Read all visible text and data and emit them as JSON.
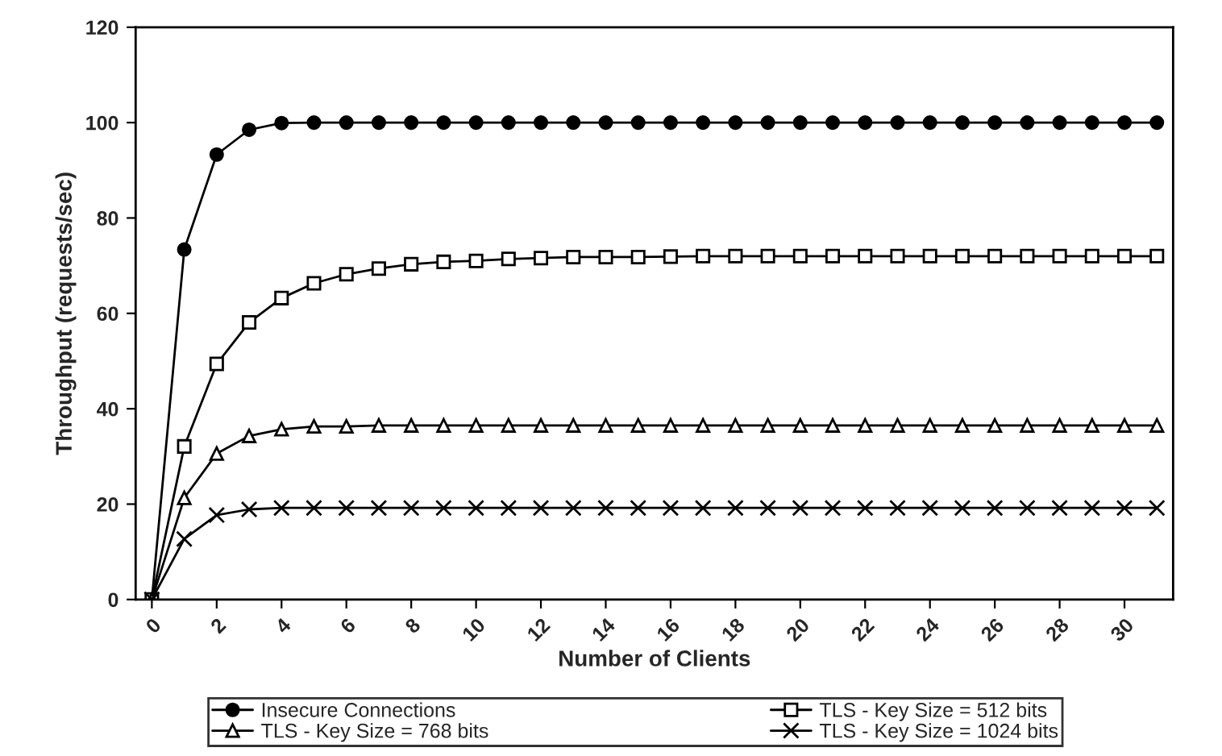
{
  "chart_data": {
    "type": "line",
    "xlabel": "Number of Clients",
    "ylabel": "Throughput (requests/sec)",
    "x": [
      0,
      1,
      2,
      3,
      4,
      5,
      6,
      7,
      8,
      9,
      10,
      11,
      12,
      13,
      14,
      15,
      16,
      17,
      18,
      19,
      20,
      21,
      22,
      23,
      24,
      25,
      26,
      27,
      28,
      29,
      30,
      31
    ],
    "xlim": [
      -0.5,
      31.5
    ],
    "xticks": [
      0,
      2,
      4,
      6,
      8,
      10,
      12,
      14,
      16,
      18,
      20,
      22,
      24,
      26,
      28,
      30
    ],
    "ylim": [
      0,
      120
    ],
    "yticks": [
      0,
      20,
      40,
      60,
      80,
      100,
      120
    ],
    "grid": false,
    "legend": "bottom",
    "series": [
      {
        "name": "Insecure Connections",
        "color": "#000000",
        "marker": "circle",
        "values": [
          0,
          73.4,
          93.3,
          98.5,
          99.9,
          100,
          100,
          100,
          100,
          100,
          100,
          100,
          100,
          100,
          100,
          100,
          100,
          100,
          100,
          100,
          100,
          100,
          100,
          100,
          100,
          100,
          100,
          100,
          100,
          100,
          100,
          100
        ]
      },
      {
        "name": "TLS - Key Size = 512 bits",
        "color": "#000000",
        "marker": "square",
        "values": [
          0,
          32.1,
          49.4,
          58.1,
          63.2,
          66.3,
          68.2,
          69.4,
          70.3,
          70.8,
          71,
          71.4,
          71.6,
          71.8,
          71.8,
          71.8,
          71.9,
          72,
          72,
          72,
          72,
          72,
          72,
          72,
          72,
          72,
          72,
          72,
          72,
          72,
          72,
          72
        ]
      },
      {
        "name": "TLS - Key Size = 768 bits",
        "color": "#000000",
        "marker": "triangle",
        "values": [
          0,
          21.3,
          30.6,
          34.3,
          35.7,
          36.3,
          36.3,
          36.5,
          36.5,
          36.5,
          36.5,
          36.5,
          36.5,
          36.5,
          36.5,
          36.5,
          36.5,
          36.5,
          36.5,
          36.5,
          36.5,
          36.5,
          36.5,
          36.5,
          36.5,
          36.5,
          36.5,
          36.5,
          36.5,
          36.5,
          36.5,
          36.5
        ]
      },
      {
        "name": "TLS - Key Size = 1024 bits",
        "color": "#000000",
        "marker": "cross",
        "values": [
          0,
          12.7,
          17.7,
          18.9,
          19.2,
          19.2,
          19.2,
          19.2,
          19.2,
          19.2,
          19.2,
          19.2,
          19.2,
          19.2,
          19.2,
          19.2,
          19.2,
          19.2,
          19.2,
          19.2,
          19.2,
          19.2,
          19.2,
          19.2,
          19.2,
          19.2,
          19.2,
          19.2,
          19.2,
          19.2,
          19.2,
          19.2
        ]
      }
    ]
  }
}
